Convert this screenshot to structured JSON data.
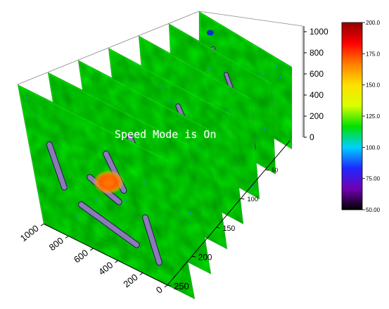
{
  "chart_data": {
    "type": "heatmap",
    "layout": "3d-slice-stack",
    "slice_count": 7,
    "z_axis": {
      "ticks": [
        0,
        200,
        400,
        600,
        800,
        1000
      ],
      "range": [
        0,
        1000
      ]
    },
    "x_axis": {
      "ticks": [
        1000,
        800,
        600,
        400,
        200,
        0
      ],
      "range": [
        0,
        1000
      ]
    },
    "depth_axis": {
      "ticks": [
        50,
        100,
        150,
        200,
        250
      ],
      "range": [
        0,
        250
      ]
    },
    "colorbar": {
      "ticks": [
        "50.00",
        "75.00",
        "100.0",
        "125.0",
        "150.0",
        "175.0",
        "200.0"
      ],
      "min": 50,
      "max": 200,
      "colors": [
        "#000000",
        "#7000b0",
        "#1e28ff",
        "#00d0ff",
        "#00e000",
        "#d8ff00",
        "#ffe000",
        "#ff8000",
        "#ff0000",
        "#900000"
      ]
    },
    "typical_value": 105,
    "hotspot_value": 160,
    "defect_value": 60
  },
  "overlay": {
    "speed_mode_text": "Speed Mode is On"
  }
}
